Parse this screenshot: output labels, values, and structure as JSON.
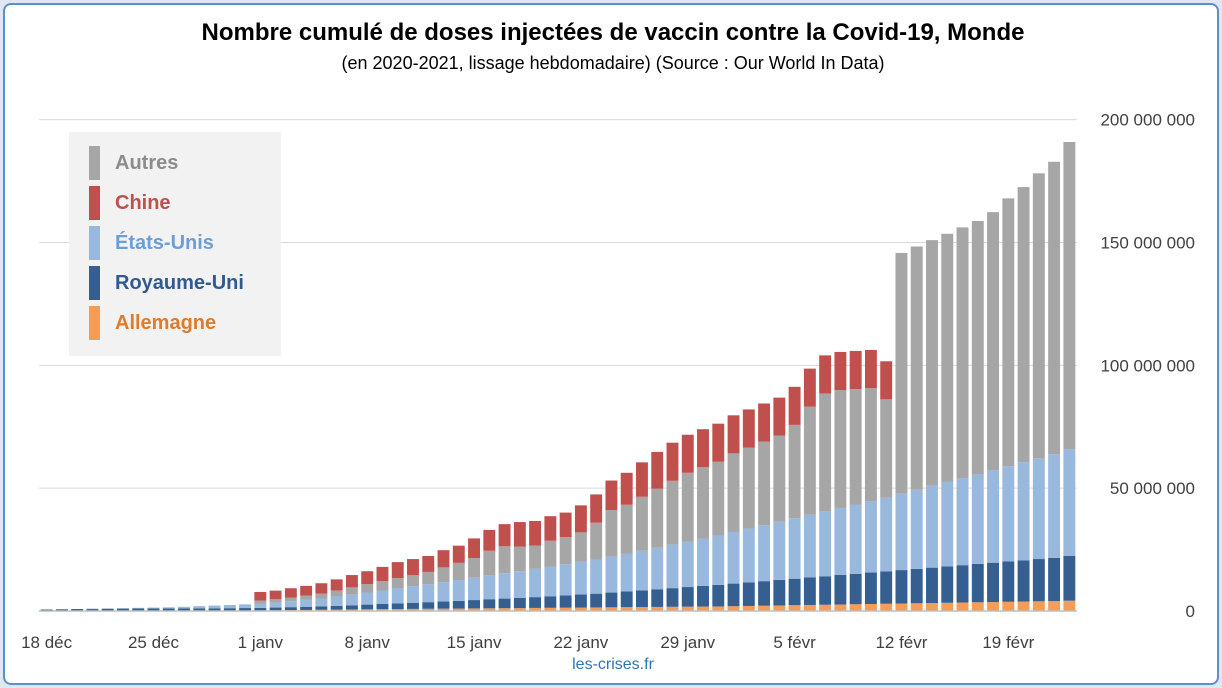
{
  "chart_data": {
    "type": "bar",
    "stacked": true,
    "title": "Nombre cumulé de doses injectées de vaccin contre la Covid-19, Monde",
    "subtitle": "(en 2020-2021, lissage hebdomadaire) (Source : Our World In Data)",
    "source_label": "les-crises.fr",
    "y_axis_position": "right",
    "ylim": [
      0,
      220000000
    ],
    "y_ticks": [
      0,
      50000000,
      100000000,
      150000000,
      200000000
    ],
    "y_tick_labels": [
      "0",
      "50 000 000",
      "100 000 000",
      "150 000 000",
      "200 000 000"
    ],
    "x_tick_labels": [
      {
        "index": 0,
        "label": "18 déc"
      },
      {
        "index": 7,
        "label": "25 déc"
      },
      {
        "index": 14,
        "label": "1 janv"
      },
      {
        "index": 21,
        "label": "8 janv"
      },
      {
        "index": 28,
        "label": "15 janv"
      },
      {
        "index": 35,
        "label": "22 janv"
      },
      {
        "index": 42,
        "label": "29 janv"
      },
      {
        "index": 49,
        "label": "5 févr"
      },
      {
        "index": 56,
        "label": "12 févr"
      },
      {
        "index": 63,
        "label": "19 févr"
      }
    ],
    "grid": true,
    "legend_position": "top-left",
    "colors": {
      "Allemagne": "#f59d56",
      "Royaume-Uni": "#355f91",
      "États-Unis": "#98b8dd",
      "Chine": "#c0504d",
      "Autres": "#a6a6a6",
      "grid": "#d9d9d9",
      "text": "#404040"
    },
    "categories": [
      "18 déc",
      "19 déc",
      "20 déc",
      "21 déc",
      "22 déc",
      "23 déc",
      "24 déc",
      "25 déc",
      "26 déc",
      "27 déc",
      "28 déc",
      "29 déc",
      "30 déc",
      "31 déc",
      "1 janv",
      "2 janv",
      "3 janv",
      "4 janv",
      "5 janv",
      "6 janv",
      "7 janv",
      "8 janv",
      "9 janv",
      "10 janv",
      "11 janv",
      "12 janv",
      "13 janv",
      "14 janv",
      "15 janv",
      "16 janv",
      "17 janv",
      "18 janv",
      "19 janv",
      "20 janv",
      "21 janv",
      "22 janv",
      "23 janv",
      "24 janv",
      "25 janv",
      "26 janv",
      "27 janv",
      "28 janv",
      "29 janv",
      "30 janv",
      "31 janv",
      "1 févr",
      "2 févr",
      "3 févr",
      "4 févr",
      "5 févr",
      "6 févr",
      "7 févr",
      "8 févr",
      "9 févr",
      "10 févr",
      "11 févr",
      "12 févr",
      "13 févr",
      "14 févr",
      "15 févr",
      "16 févr",
      "17 févr",
      "18 févr",
      "19 févr",
      "20 févr",
      "21 févr",
      "22 févr",
      "23 févr"
    ],
    "series": [
      {
        "name": "Allemagne",
        "values": [
          0,
          0,
          0,
          0,
          0,
          0,
          0,
          0,
          0,
          10000,
          70000,
          100000,
          150000,
          200000,
          250000,
          300000,
          370000,
          430000,
          500000,
          570000,
          630000,
          700000,
          750000,
          800000,
          850000,
          900000,
          950000,
          1000000,
          1050000,
          1100000,
          1150000,
          1200000,
          1250000,
          1300000,
          1350000,
          1400000,
          1450000,
          1500000,
          1550000,
          1600000,
          1650000,
          1700000,
          1750000,
          1800000,
          1850000,
          1950000,
          2050000,
          2150000,
          2250000,
          2350000,
          2450000,
          2550000,
          2650000,
          2750000,
          2850000,
          2950000,
          3050000,
          3150000,
          3250000,
          3350000,
          3450000,
          3550000,
          3650000,
          3750000,
          3850000,
          3950000,
          4050000,
          4200000
        ]
      },
      {
        "name": "Royaume-Uni",
        "values": [
          600000,
          700000,
          800000,
          850000,
          900000,
          950000,
          1000000,
          1000000,
          1000000,
          1000000,
          1000000,
          1000000,
          1000000,
          1000000,
          1000000,
          1100000,
          1200000,
          1300000,
          1400000,
          1500000,
          1700000,
          1900000,
          2100000,
          2300000,
          2500000,
          2700000,
          2900000,
          3100000,
          3400000,
          3700000,
          3900000,
          4100000,
          4400000,
          4700000,
          5000000,
          5300000,
          5600000,
          6000000,
          6400000,
          6800000,
          7200000,
          7600000,
          8000000,
          8400000,
          8800000,
          9200000,
          9600000,
          10000000,
          10400000,
          10800000,
          11200000,
          11600000,
          12000000,
          12400000,
          12800000,
          13200000,
          13600000,
          14000000,
          14400000,
          14800000,
          15200000,
          15600000,
          16000000,
          16400000,
          16800000,
          17200000,
          17600000,
          18200000
        ]
      },
      {
        "name": "États-Unis",
        "values": [
          0,
          0,
          0,
          100000,
          200000,
          250000,
          300000,
          400000,
          500000,
          700000,
          900000,
          1100000,
          1300000,
          1500000,
          1800000,
          2100000,
          2400000,
          2800000,
          3200000,
          3800000,
          4300000,
          4900000,
          5500000,
          6100000,
          6700000,
          7300000,
          7900000,
          8500000,
          9100000,
          9700000,
          10300000,
          10900000,
          11500000,
          12100000,
          12700000,
          13300000,
          13900000,
          14600000,
          15300000,
          16100000,
          16900000,
          17700000,
          18500000,
          19300000,
          20100000,
          21000000,
          21900000,
          22800000,
          23700000,
          24600000,
          25500000,
          26400000,
          27300000,
          28200000,
          29100000,
          30000000,
          31100000,
          32200000,
          33300000,
          34400000,
          35500000,
          36600000,
          37700000,
          38800000,
          39900000,
          41000000,
          42200000,
          43500000
        ]
      },
      {
        "name": "Autres",
        "values": [
          0,
          0,
          0,
          0,
          0,
          0,
          0,
          0,
          0,
          0,
          0,
          0,
          0,
          0,
          1200000,
          1300000,
          1500000,
          1700000,
          2000000,
          2500000,
          3000000,
          3400000,
          3800000,
          4200000,
          4600000,
          5000000,
          6000000,
          7000000,
          8000000,
          10000000,
          11000000,
          10000000,
          9500000,
          10500000,
          11000000,
          12000000,
          15000000,
          19000000,
          20000000,
          22000000,
          24000000,
          26000000,
          28000000,
          29000000,
          30000000,
          32000000,
          33000000,
          34000000,
          35000000,
          38000000,
          44000000,
          48000000,
          48000000,
          47000000,
          46000000,
          40000000,
          98000000,
          99000000,
          100000000,
          101000000,
          102000000,
          103000000,
          105000000,
          109000000,
          112000000,
          116000000,
          119000000,
          125000000
        ]
      },
      {
        "name": "Chine",
        "values": [
          0,
          0,
          0,
          0,
          0,
          0,
          0,
          0,
          0,
          0,
          0,
          0,
          0,
          0,
          3500000,
          3500000,
          3800000,
          4000000,
          4200000,
          4500000,
          5000000,
          5300000,
          5800000,
          6500000,
          6500000,
          6500000,
          7000000,
          7000000,
          8000000,
          8500000,
          9000000,
          10000000,
          10000000,
          10000000,
          10000000,
          11000000,
          11500000,
          12000000,
          13000000,
          14000000,
          15000000,
          15500000,
          15500000,
          15500000,
          15500000,
          15500000,
          15500000,
          15500000,
          15500000,
          15500000,
          15500000,
          15500000,
          15500000,
          15500000,
          15500000,
          15500000,
          0,
          0,
          0,
          0,
          0,
          0,
          0,
          0,
          0,
          0,
          0,
          0
        ]
      }
    ]
  },
  "legend_order": [
    "Autres",
    "Chine",
    "États-Unis",
    "Royaume-Uni",
    "Allemagne"
  ]
}
